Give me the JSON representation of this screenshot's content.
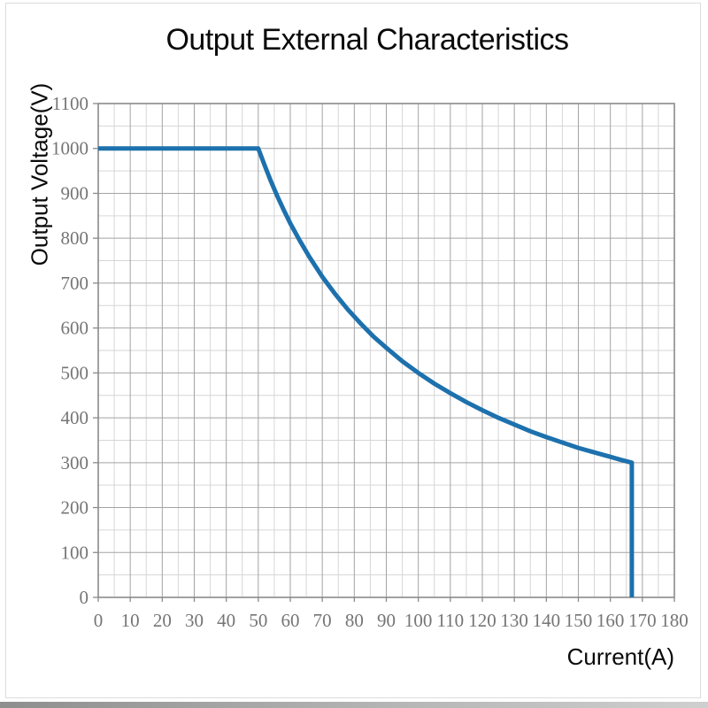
{
  "title": "Output External Characteristics",
  "axes": {
    "xlabel": "Current(A)",
    "ylabel": "Output Voltage(V)"
  },
  "colors": {
    "curve": "#1d71ad",
    "grid_major": "#a3a3a3",
    "grid_minor": "#d6d6d6",
    "plot_border": "#8a8a8a",
    "tick_text": "#757575",
    "title_text": "#0a0a0a"
  },
  "chart_data": {
    "type": "line",
    "title": "Output External Characteristics",
    "xlabel": "Current(A)",
    "ylabel": "Output Voltage(V)",
    "xlim": [
      0,
      180
    ],
    "ylim": [
      0,
      1100
    ],
    "x_major_step": 10,
    "x_minor_step": 5,
    "y_major_step": 100,
    "y_minor_step": 50,
    "x_tick_labels": [
      "0",
      "10",
      "20",
      "30",
      "40",
      "50",
      "60",
      "70",
      "80",
      "90",
      "100",
      "110",
      "120",
      "130",
      "140",
      "150",
      "160",
      "170",
      "180"
    ],
    "y_tick_labels": [
      "0",
      "100",
      "200",
      "300",
      "400",
      "500",
      "600",
      "700",
      "800",
      "900",
      "1000",
      "1100"
    ],
    "grid": "on",
    "legend": "none",
    "line_color": "#1d71ad",
    "series": [
      {
        "name": "output-voltage-vs-current",
        "points": [
          [
            0,
            1000
          ],
          [
            50,
            1000
          ],
          [
            52,
            962
          ],
          [
            54,
            926
          ],
          [
            56,
            893
          ],
          [
            58,
            862
          ],
          [
            60,
            833
          ],
          [
            63,
            794
          ],
          [
            66,
            758
          ],
          [
            70,
            714
          ],
          [
            74,
            676
          ],
          [
            78,
            641
          ],
          [
            82,
            610
          ],
          [
            86,
            581
          ],
          [
            90,
            556
          ],
          [
            95,
            526
          ],
          [
            100,
            500
          ],
          [
            105,
            476
          ],
          [
            110,
            455
          ],
          [
            115,
            435
          ],
          [
            120,
            417
          ],
          [
            125,
            400
          ],
          [
            130,
            385
          ],
          [
            135,
            370
          ],
          [
            140,
            357
          ],
          [
            145,
            345
          ],
          [
            150,
            333
          ],
          [
            155,
            323
          ],
          [
            160,
            313
          ],
          [
            163,
            307
          ],
          [
            166.7,
            300
          ],
          [
            166.7,
            0
          ]
        ]
      }
    ]
  }
}
